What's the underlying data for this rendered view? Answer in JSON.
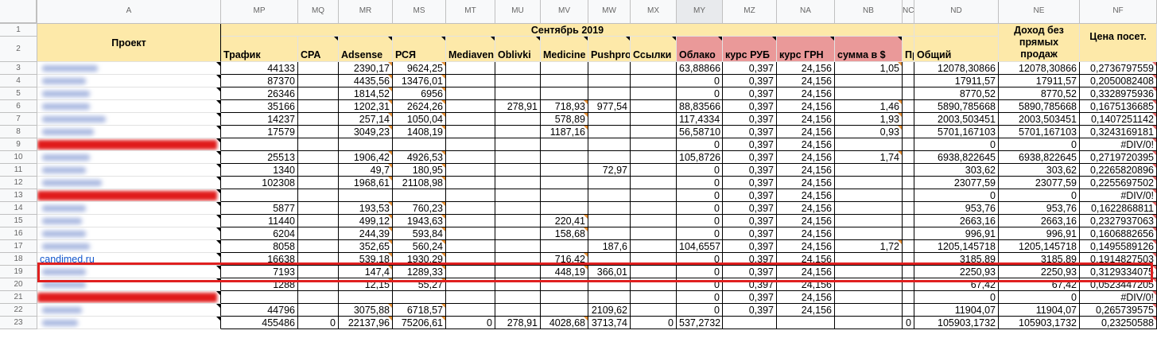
{
  "columns": [
    "A",
    "MP",
    "MQ",
    "MR",
    "MS",
    "MT",
    "MU",
    "MV",
    "MW",
    "MX",
    "MY",
    "MZ",
    "NA",
    "NB",
    "NC",
    "ND",
    "NE",
    "NF"
  ],
  "header": {
    "project_label": "Проект",
    "month_label": "Сентябрь 2019",
    "fields": [
      "Трафик",
      "CPA",
      "Adsense",
      "РСЯ",
      "Mediaven",
      "Oblivki",
      "Medicine",
      "Pushpro",
      "Ссылки",
      "Облако",
      "курс РУБ",
      "курс ГРН",
      "сумма в $",
      "Пр",
      "Общий",
      "Доход без прямых продаж",
      "Цена посет."
    ]
  },
  "rows": [
    {
      "num": "3",
      "project": "",
      "values": [
        "44133",
        "",
        "2390,17",
        "9624,25",
        "",
        "",
        "",
        "",
        "",
        "63,88866",
        "0,397",
        "24,156",
        "1,05",
        "",
        "12078,30866",
        "12078,30866",
        "0,2736797559"
      ]
    },
    {
      "num": "4",
      "project": "",
      "values": [
        "87370",
        "",
        "4435,56",
        "13476,01",
        "",
        "",
        "",
        "",
        "",
        "0",
        "0,397",
        "24,156",
        "",
        "",
        "17911,57",
        "17911,57",
        "0,2050082408"
      ]
    },
    {
      "num": "5",
      "project": "",
      "values": [
        "26346",
        "",
        "1814,52",
        "6956",
        "",
        "",
        "",
        "",
        "",
        "0",
        "0,397",
        "24,156",
        "",
        "",
        "8770,52",
        "8770,52",
        "0,3328975936"
      ]
    },
    {
      "num": "6",
      "project": "",
      "values": [
        "35166",
        "",
        "1202,31",
        "2624,26",
        "",
        "278,91",
        "718,93",
        "977,54",
        "",
        "88,83566",
        "0,397",
        "24,156",
        "1,46",
        "",
        "5890,785668",
        "5890,785668",
        "0,1675136685"
      ]
    },
    {
      "num": "7",
      "project": "",
      "values": [
        "14237",
        "",
        "257,14",
        "1050,04",
        "",
        "",
        "578,89",
        "",
        "",
        "117,4334",
        "0,397",
        "24,156",
        "1,93",
        "",
        "2003,503451",
        "2003,503451",
        "0,1407251142"
      ]
    },
    {
      "num": "8",
      "project": "",
      "values": [
        "17579",
        "",
        "3049,23",
        "1408,19",
        "",
        "",
        "1187,16",
        "",
        "",
        "56,58710",
        "0,397",
        "24,156",
        "0,93",
        "",
        "5701,167103",
        "5701,167103",
        "0,3243169181"
      ]
    },
    {
      "num": "9",
      "project": "",
      "values": [
        "",
        "",
        "",
        "",
        "",
        "",
        "",
        "",
        "",
        "0",
        "0,397",
        "24,156",
        "",
        "",
        "0",
        "0",
        "#DIV/0!"
      ]
    },
    {
      "num": "10",
      "project": "",
      "values": [
        "25513",
        "",
        "1906,42",
        "4926,53",
        "",
        "",
        "",
        "",
        "",
        "105,8726",
        "0,397",
        "24,156",
        "1,74",
        "",
        "6938,822645",
        "6938,822645",
        "0,2719720395"
      ]
    },
    {
      "num": "11",
      "project": "",
      "values": [
        "1340",
        "",
        "49,7",
        "180,95",
        "",
        "",
        "",
        "72,97",
        "",
        "0",
        "0,397",
        "24,156",
        "",
        "",
        "303,62",
        "303,62",
        "0,2265820896"
      ]
    },
    {
      "num": "12",
      "project": "",
      "values": [
        "102308",
        "",
        "1968,61",
        "21108,98",
        "",
        "",
        "",
        "",
        "",
        "0",
        "0,397",
        "24,156",
        "",
        "",
        "23077,59",
        "23077,59",
        "0,2255697502"
      ]
    },
    {
      "num": "13",
      "project": "",
      "values": [
        "",
        "",
        "",
        "",
        "",
        "",
        "",
        "",
        "",
        "0",
        "0,397",
        "24,156",
        "",
        "",
        "0",
        "0",
        "#DIV/0!"
      ]
    },
    {
      "num": "14",
      "project": "",
      "values": [
        "5877",
        "",
        "193,53",
        "760,23",
        "",
        "",
        "",
        "",
        "",
        "0",
        "0,397",
        "24,156",
        "",
        "",
        "953,76",
        "953,76",
        "0,1622868811"
      ]
    },
    {
      "num": "15",
      "project": "",
      "values": [
        "11440",
        "",
        "499,12",
        "1943,63",
        "",
        "",
        "220,41",
        "",
        "",
        "0",
        "0,397",
        "24,156",
        "",
        "",
        "2663,16",
        "2663,16",
        "0,2327937063"
      ]
    },
    {
      "num": "16",
      "project": "",
      "values": [
        "6204",
        "",
        "244,39",
        "593,84",
        "",
        "",
        "158,68",
        "",
        "",
        "0",
        "0,397",
        "24,156",
        "",
        "",
        "996,91",
        "996,91",
        "0,1606882656"
      ]
    },
    {
      "num": "17",
      "project": "",
      "values": [
        "8058",
        "",
        "352,65",
        "560,24",
        "",
        "",
        "",
        "187,6",
        "",
        "104,6557",
        "0,397",
        "24,156",
        "1,72",
        "",
        "1205,145718",
        "1205,145718",
        "0,1495589126"
      ]
    },
    {
      "num": "18",
      "project": "candimed.ru",
      "values": [
        "16638",
        "",
        "539,18",
        "1930,29",
        "",
        "",
        "716,42",
        "",
        "",
        "0",
        "0,397",
        "24,156",
        "",
        "",
        "3185,89",
        "3185,89",
        "0,1914827503"
      ]
    },
    {
      "num": "19",
      "project": "",
      "values": [
        "7193",
        "",
        "147,4",
        "1289,33",
        "",
        "",
        "448,19",
        "366,01",
        "",
        "0",
        "0,397",
        "24,156",
        "",
        "",
        "2250,93",
        "2250,93",
        "0,3129334075"
      ]
    },
    {
      "num": "20",
      "project": "",
      "values": [
        "1288",
        "",
        "12,15",
        "55,27",
        "",
        "",
        "",
        "",
        "",
        "0",
        "0,397",
        "24,156",
        "",
        "",
        "67,42",
        "67,42",
        "0,0523447205"
      ]
    },
    {
      "num": "21",
      "project": "",
      "values": [
        "",
        "",
        "",
        "",
        "",
        "",
        "",
        "",
        "",
        "0",
        "0,397",
        "24,156",
        "",
        "",
        "0",
        "0",
        "#DIV/0!"
      ]
    },
    {
      "num": "22",
      "project": "",
      "values": [
        "44796",
        "",
        "3075,88",
        "6718,57",
        "",
        "",
        "",
        "2109,62",
        "",
        "0",
        "0,397",
        "24,156",
        "",
        "",
        "11904,07",
        "11904,07",
        "0,265739575"
      ]
    },
    {
      "num": "23",
      "project": "",
      "values": [
        "455486",
        "0",
        "22137,96",
        "75206,61",
        "0",
        "278,91",
        "4028,68",
        "3713,74",
        "0",
        "537,2732",
        "",
        "",
        "",
        "0",
        "105903,1732",
        "105903,1732",
        "0,23250588"
      ]
    }
  ],
  "colors": {
    "header_yellow": "#fde9a9",
    "header_pink": "#ea9999",
    "highlight_red": "#e02020",
    "link_blue": "#1155cc"
  }
}
